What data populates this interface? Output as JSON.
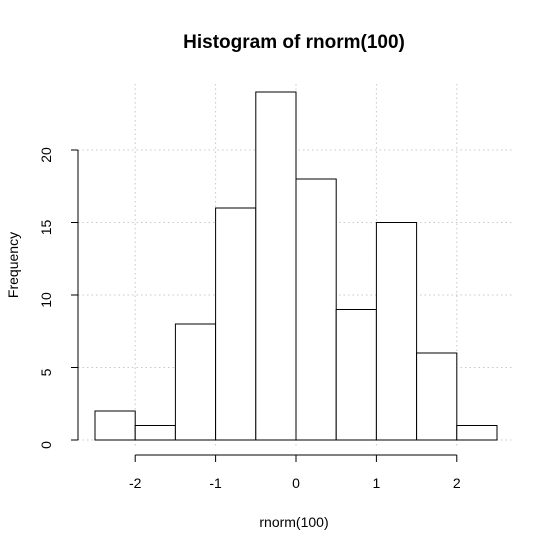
{
  "chart_data": {
    "type": "bar",
    "title": "Histogram of rnorm(100)",
    "xlabel": "rnorm(100)",
    "ylabel": "Frequency",
    "bins": [
      {
        "x0": -2.5,
        "x1": -2.0,
        "count": 2
      },
      {
        "x0": -2.0,
        "x1": -1.5,
        "count": 1
      },
      {
        "x0": -1.5,
        "x1": -1.0,
        "count": 8
      },
      {
        "x0": -1.0,
        "x1": -0.5,
        "count": 16
      },
      {
        "x0": -0.5,
        "x1": 0.0,
        "count": 24
      },
      {
        "x0": 0.0,
        "x1": 0.5,
        "count": 18
      },
      {
        "x0": 0.5,
        "x1": 1.0,
        "count": 9
      },
      {
        "x0": 1.0,
        "x1": 1.5,
        "count": 15
      },
      {
        "x0": 1.5,
        "x1": 2.0,
        "count": 6
      },
      {
        "x0": 2.0,
        "x1": 2.5,
        "count": 1
      }
    ],
    "xlim": [
      -2.5,
      2.5
    ],
    "ylim": [
      0,
      24
    ],
    "x_ticks": [
      -2,
      -1,
      0,
      1,
      2
    ],
    "x_tick_labels": [
      "-2",
      "-1",
      "0",
      "1",
      "2"
    ],
    "y_ticks": [
      0,
      5,
      10,
      15,
      20
    ],
    "y_tick_labels": [
      "0",
      "5",
      "10",
      "15",
      "20"
    ],
    "grid": true,
    "legend": "none",
    "colors": {
      "bar_fill": "#ffffff",
      "bar_stroke": "#000000",
      "grid": "#c8c8c8",
      "axis": "#000000"
    }
  }
}
